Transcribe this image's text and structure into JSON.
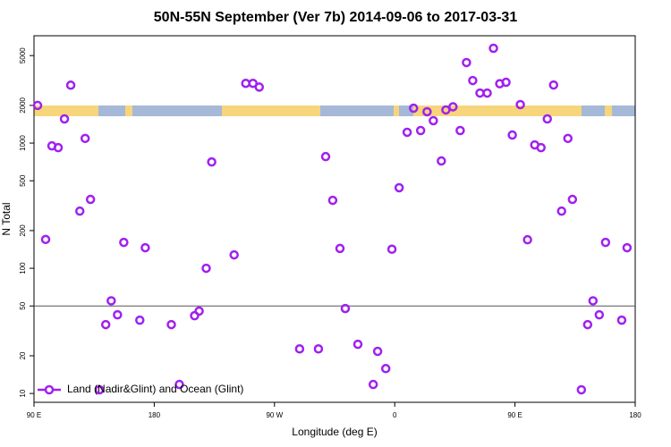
{
  "chart_data": {
    "type": "scatter",
    "title": "50N-55N September (Ver 7b)   2014-09-06 to 2017-03-31",
    "x_label": "Longitude (deg E)",
    "y_label": "N Total",
    "log_y": true,
    "xlim": [
      90,
      540
    ],
    "xticks": [
      {
        "value": 90,
        "label": "90 E"
      },
      {
        "value": 180,
        "label": "180"
      },
      {
        "value": 270,
        "label": "90 W"
      },
      {
        "value": 360,
        "label": "0"
      },
      {
        "value": 450,
        "label": "90 E"
      },
      {
        "value": 540,
        "label": "180"
      }
    ],
    "ylim": [
      8.5,
      7200
    ],
    "yticks": [
      10,
      20,
      50,
      100,
      200,
      500,
      1000,
      2000,
      5000
    ],
    "reference_line": 50,
    "legend": "bottom-left",
    "series": [
      {
        "name": "Land (Nadir&Glint) and Ocean (Glint)",
        "color": "#a020f0",
        "x": [
          92.7,
          98.7,
          103.4,
          108.1,
          112.8,
          117.5,
          124.3,
          128.3,
          132.3,
          139.0,
          143.7,
          147.8,
          152.5,
          157.2,
          169.2,
          173.3,
          192.8,
          198.8,
          210.2,
          213.6,
          218.9,
          223.0,
          239.8,
          248.5,
          253.9,
          258.6,
          288.8,
          302.9,
          308.3,
          313.6,
          319.0,
          323.0,
          332.4,
          343.9,
          347.2,
          353.3,
          357.9,
          363.3,
          369.3,
          374.1,
          379.4,
          384.2,
          388.9,
          394.9,
          398.3,
          403.6,
          409.0,
          413.7,
          418.4,
          423.8,
          429.2,
          433.9,
          438.6,
          443.3,
          448.0,
          454.0,
          459.4,
          464.8,
          469.5,
          474.2,
          478.9,
          484.9,
          489.6,
          493.0,
          499.7,
          504.4,
          508.4,
          513.1,
          517.8,
          529.9,
          533.9
        ],
        "values": [
          2000,
          170,
          950,
          920,
          1560,
          2900,
          286,
          1090,
          355,
          10.7,
          35.5,
          55,
          42.5,
          161,
          38.5,
          146,
          35.5,
          11.8,
          41.8,
          45.5,
          100,
          707,
          128,
          3000,
          3000,
          2800,
          22.7,
          22.7,
          780,
          349,
          144,
          47.7,
          24.7,
          11.8,
          21.7,
          15.8,
          142,
          440,
          1220,
          1900,
          1260,
          1780,
          1510,
          720,
          1840,
          1950,
          1260,
          4400,
          3160,
          2510,
          2510,
          5720,
          2980,
          3060,
          1160,
          2030,
          169,
          967,
          920,
          1560,
          2910,
          286,
          1090,
          355,
          10.7,
          35.5,
          55,
          42.5,
          161,
          38.5,
          146
        ]
      }
    ]
  }
}
